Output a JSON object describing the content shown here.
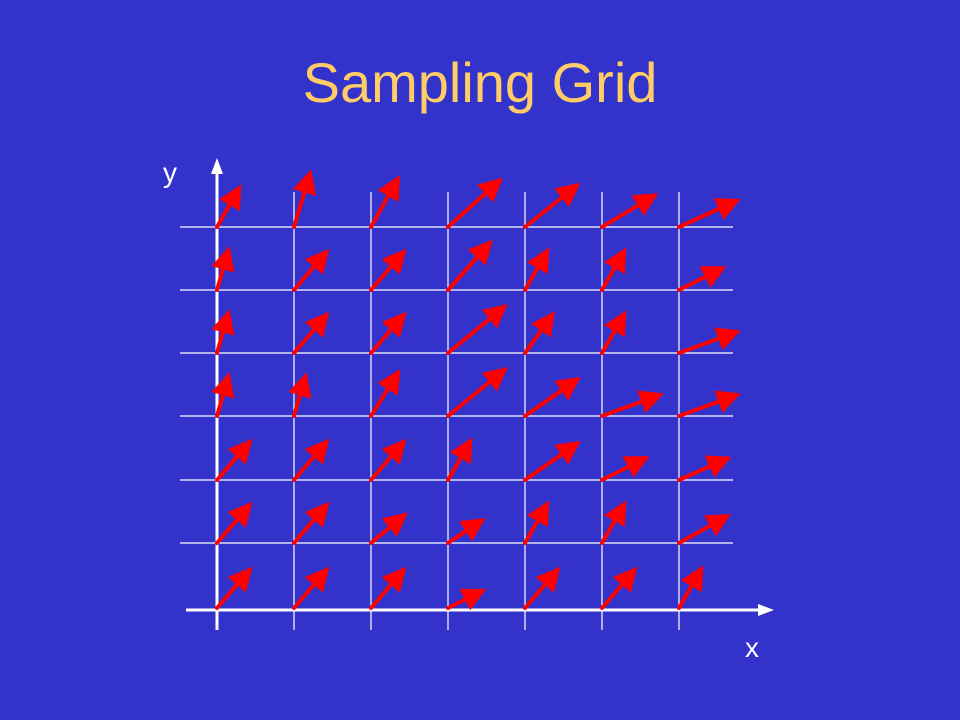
{
  "slide": {
    "title": "Sampling Grid"
  },
  "axes": {
    "x_label": "x",
    "y_label": "y"
  },
  "colors": {
    "background": "#3333cc",
    "title": "#ffcc66",
    "grid": "#ffffff",
    "vectors": "#ff0000"
  },
  "grid": {
    "columns": 7,
    "rows": 7
  },
  "vectors": {
    "rows": [
      [
        [
          4,
          7
        ],
        [
          3,
          10
        ],
        [
          5,
          9
        ],
        [
          10,
          9
        ],
        [
          10,
          8
        ],
        [
          10,
          6
        ],
        [
          11,
          5
        ]
      ],
      [
        [
          2,
          7
        ],
        [
          6,
          7
        ],
        [
          6,
          7
        ],
        [
          8,
          9
        ],
        [
          4,
          7
        ],
        [
          4,
          7
        ],
        [
          8,
          4
        ]
      ],
      [
        [
          2,
          7
        ],
        [
          6,
          7
        ],
        [
          6,
          7
        ],
        [
          11,
          9
        ],
        [
          5,
          7
        ],
        [
          4,
          7
        ],
        [
          11,
          4
        ]
      ],
      [
        [
          2,
          7
        ],
        [
          2,
          7
        ],
        [
          5,
          8
        ],
        [
          11,
          9
        ],
        [
          10,
          7
        ],
        [
          11,
          4
        ],
        [
          11,
          4
        ]
      ],
      [
        [
          6,
          7
        ],
        [
          6,
          7
        ],
        [
          6,
          7
        ],
        [
          4,
          7
        ],
        [
          10,
          7
        ],
        [
          8,
          4
        ],
        [
          9,
          4
        ]
      ],
      [
        [
          6,
          7
        ],
        [
          6,
          7
        ],
        [
          6,
          5
        ],
        [
          6,
          4
        ],
        [
          4,
          7
        ],
        [
          4,
          7
        ],
        [
          9,
          5
        ]
      ],
      [
        [
          6,
          7
        ],
        [
          6,
          7
        ],
        [
          6,
          7
        ],
        [
          6,
          3
        ],
        [
          6,
          7
        ],
        [
          6,
          7
        ],
        [
          4,
          7
        ]
      ]
    ]
  }
}
